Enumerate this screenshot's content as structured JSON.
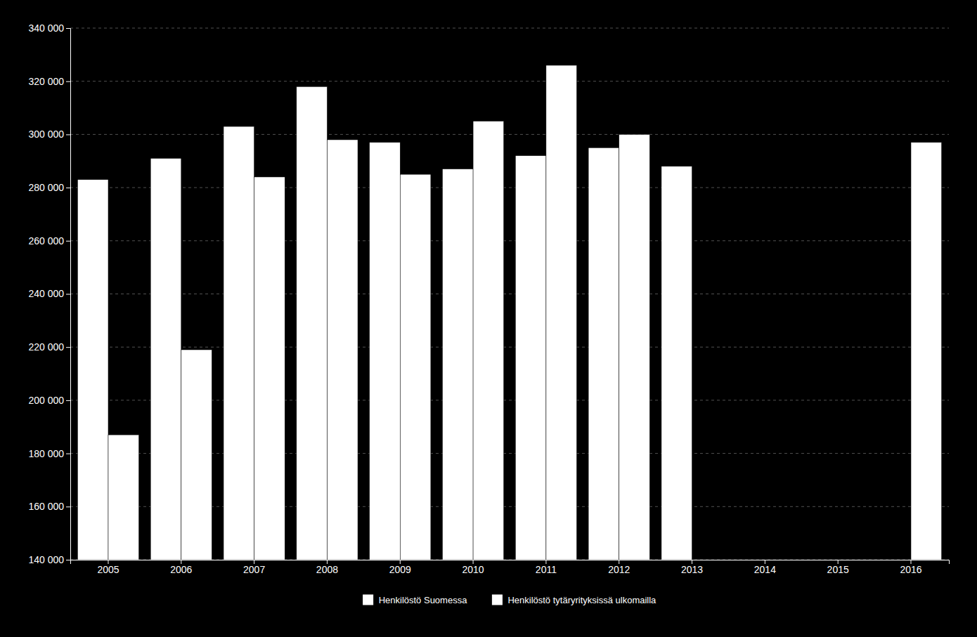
{
  "chart_data": {
    "type": "bar",
    "categories": [
      "2005",
      "2006",
      "2007",
      "2008",
      "2009",
      "2010",
      "2011",
      "2012",
      "2013",
      "2014",
      "2015",
      "2016"
    ],
    "series": [
      {
        "name": "Henkilöstö Suomessa",
        "color": "#ffffff",
        "values": [
          283000,
          291000,
          303000,
          318000,
          297000,
          287000,
          292000,
          295000,
          288000,
          null,
          null,
          null
        ]
      },
      {
        "name": "Henkilöstö tytäryrityksissä ulkomailla",
        "color": "#ffffff",
        "values": [
          187000,
          219000,
          284000,
          298000,
          285000,
          305000,
          326000,
          300000,
          null,
          null,
          null,
          297000
        ]
      }
    ],
    "ylim": [
      140000,
      340000
    ],
    "yticks": [
      {
        "value": 140000,
        "label": "140 000"
      },
      {
        "value": 160000,
        "label": "160 000"
      },
      {
        "value": 180000,
        "label": "180 000"
      },
      {
        "value": 200000,
        "label": "200 000"
      },
      {
        "value": 220000,
        "label": "220 000"
      },
      {
        "value": 240000,
        "label": "240 000"
      },
      {
        "value": 260000,
        "label": "260 000"
      },
      {
        "value": 280000,
        "label": "280 000"
      },
      {
        "value": 300000,
        "label": "300 000"
      },
      {
        "value": 320000,
        "label": "320 000"
      },
      {
        "value": 340000,
        "label": "340 000"
      }
    ],
    "grid": true,
    "legend": "bottom"
  }
}
